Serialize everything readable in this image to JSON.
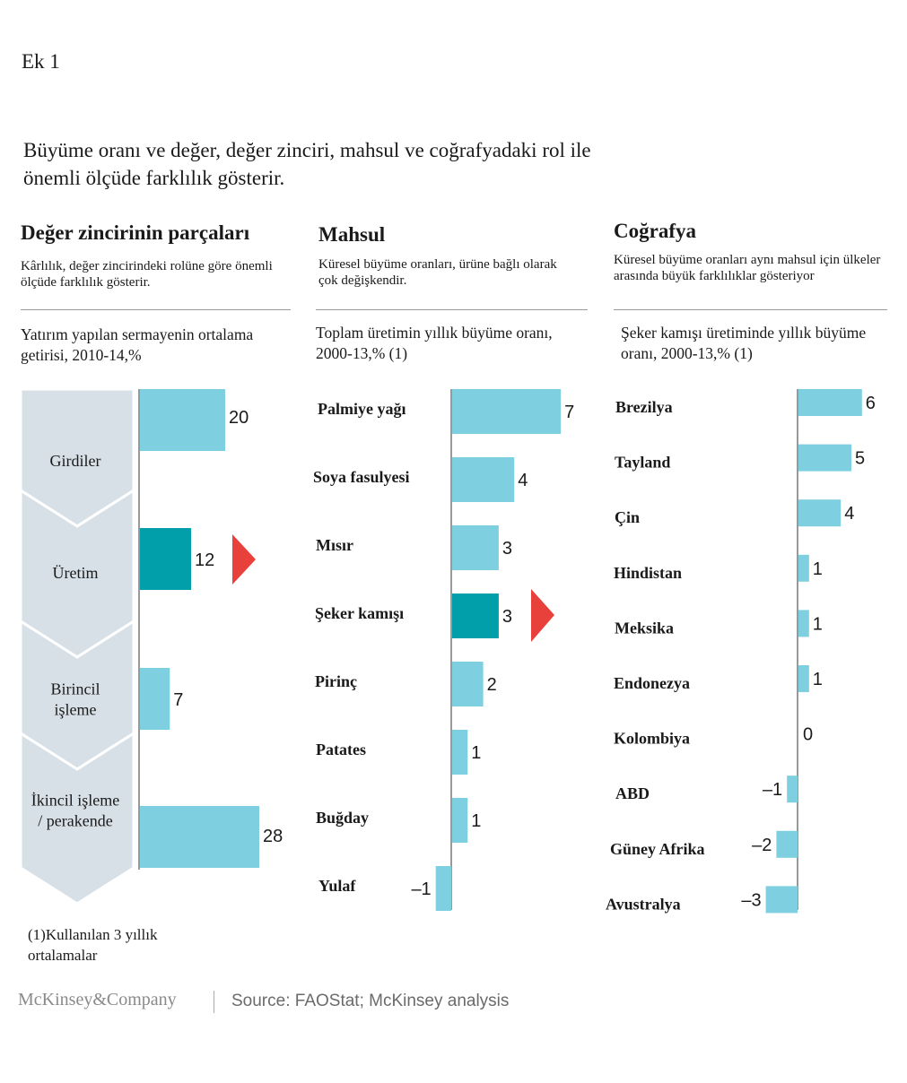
{
  "exhibit_label": "Ek 1",
  "headline": "Büyüme oranı ve değer, değer zinciri, mahsul ve coğrafyadaki rol ile önemli ölçüde farklılık gösterir.",
  "panels": {
    "value_chain": {
      "title": "Değer zincirinin parçaları",
      "subtitle": "Kârlılık, değer zincirindeki rolüne göre önemli ölçüde farklılık gösterir.",
      "metric": "Yatırım yapılan sermayenin ortalama getirisi, 2010-14,%"
    },
    "crops": {
      "title": "Mahsul",
      "subtitle": "Küresel büyüme oranları, ürüne bağlı olarak çok değişkendir.",
      "metric": "Toplam üretimin yıllık büyüme oranı, 2000-13,% (1)"
    },
    "geography": {
      "title": "Coğrafya",
      "subtitle": "Küresel büyüme oranları aynı mahsul için ülkeler arasında büyük farklılıklar gösteriyor",
      "metric": "Şeker kamışı üretiminde yıllık büyüme oranı, 2000-13,% (1)"
    }
  },
  "colors": {
    "bar": "#7ecfe0",
    "highlight": "#009faa",
    "arrow": "#e8403a",
    "chevron": "#d7e0e6",
    "axis": "#333333"
  },
  "chart_data": [
    {
      "type": "bar",
      "orientation": "horizontal",
      "categories": [
        "Girdiler",
        "Üretim",
        "Birincil işleme",
        "İkincil işleme / perakende"
      ],
      "category_lines": [
        [
          "Girdiler"
        ],
        [
          "Üretim"
        ],
        [
          "Birincil",
          "işleme"
        ],
        [
          "İkincil işleme",
          "/ perakende"
        ]
      ],
      "values": [
        20,
        12,
        7,
        28
      ],
      "value_labels": [
        "20",
        "12",
        "7",
        "28"
      ],
      "highlight": "Üretim",
      "xlim": [
        0,
        28
      ]
    },
    {
      "type": "bar",
      "orientation": "horizontal",
      "categories": [
        "Palmiye yağı",
        "Soya fasulyesi",
        "Mısır",
        "Şeker kamışı",
        "Pirinç",
        "Patates",
        "Buğday",
        "Yulaf"
      ],
      "values": [
        7,
        4,
        3,
        3,
        2,
        1,
        1,
        -1
      ],
      "value_labels": [
        "7",
        "4",
        "3",
        "3",
        "2",
        "1",
        "1",
        "–1"
      ],
      "highlight": "Şeker kamışı",
      "xlim": [
        -1,
        7
      ]
    },
    {
      "type": "bar",
      "orientation": "horizontal",
      "categories": [
        "Brezilya",
        "Tayland",
        "Çin",
        "Hindistan",
        "Meksika",
        "Endonezya",
        "Kolombiya",
        "ABD",
        "Güney Afrika",
        "Avustralya"
      ],
      "values": [
        6,
        5,
        4,
        1,
        1,
        1,
        0,
        -1,
        -2,
        -3
      ],
      "value_labels": [
        "6",
        "5",
        "4",
        "1",
        "1",
        "1",
        "0",
        "–1",
        "–2",
        "–3"
      ],
      "xlim": [
        -3,
        6
      ]
    }
  ],
  "footnote": "(1)Kullanılan 3 yıllık ortalamalar",
  "brand": "McKinsey&Company",
  "source": "Source: FAOStat; McKinsey analysis"
}
